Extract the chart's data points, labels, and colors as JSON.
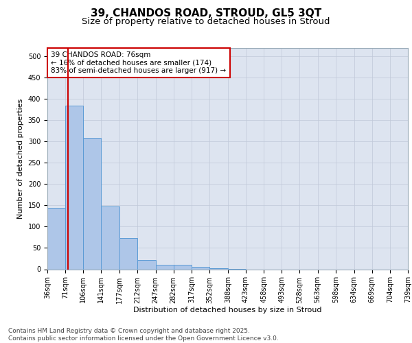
{
  "title_line1": "39, CHANDOS ROAD, STROUD, GL5 3QT",
  "title_line2": "Size of property relative to detached houses in Stroud",
  "xlabel": "Distribution of detached houses by size in Stroud",
  "ylabel": "Number of detached properties",
  "bar_edges": [
    36,
    71,
    106,
    141,
    177,
    212,
    247,
    282,
    317,
    352,
    388,
    423,
    458,
    493,
    528,
    563,
    598,
    634,
    669,
    704,
    739
  ],
  "bar_heights": [
    145,
    385,
    308,
    148,
    73,
    22,
    10,
    10,
    5,
    2,
    1,
    0,
    0,
    0,
    0,
    0,
    0,
    0,
    0,
    0
  ],
  "bar_color": "#aec6e8",
  "bar_edge_color": "#5b9bd5",
  "property_size": 76,
  "red_line_color": "#cc0000",
  "annotation_text": "39 CHANDOS ROAD: 76sqm\n← 16% of detached houses are smaller (174)\n83% of semi-detached houses are larger (917) →",
  "annotation_box_color": "#ffffff",
  "annotation_box_edge": "#cc0000",
  "ylim": [
    0,
    520
  ],
  "yticks": [
    0,
    50,
    100,
    150,
    200,
    250,
    300,
    350,
    400,
    450,
    500
  ],
  "background_color": "#dde4f0",
  "footer_text": "Contains HM Land Registry data © Crown copyright and database right 2025.\nContains public sector information licensed under the Open Government Licence v3.0.",
  "title_fontsize": 11,
  "subtitle_fontsize": 9.5,
  "axis_label_fontsize": 8,
  "tick_fontsize": 7,
  "annotation_fontsize": 7.5,
  "footer_fontsize": 6.5
}
